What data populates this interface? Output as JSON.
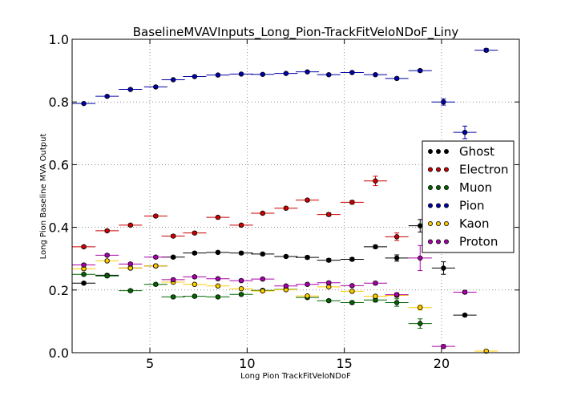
{
  "chart_data": {
    "type": "scatter",
    "title": "BaselineMVAVInputs_Long_Pion-TrackFitVeloNDoF_Liny",
    "xlabel": "Long Pion TrackFitVeloNDoF",
    "ylabel": "Long Pion Baseline MVA Output",
    "xlim": [
      1,
      24
    ],
    "ylim": [
      0.0,
      1.0
    ],
    "x_ticks": [
      5,
      10,
      15,
      20
    ],
    "x_tick_labels": [
      "5",
      "10",
      "15",
      "20"
    ],
    "y_ticks": [
      0.0,
      0.2,
      0.4,
      0.6,
      0.8,
      1.0
    ],
    "y_tick_labels": [
      "0.0",
      "0.2",
      "0.4",
      "0.6",
      "0.8",
      "1.0"
    ],
    "grid": true,
    "legend_position": "right",
    "bin_half_width": 0.6,
    "series": [
      {
        "name": "Ghost",
        "color": "#000000",
        "ecolor": "#000000",
        "x": [
          1.6,
          2.8,
          4.0,
          5.3,
          6.2,
          7.3,
          8.5,
          9.7,
          10.8,
          12.0,
          13.1,
          14.2,
          15.4,
          16.6,
          17.7,
          18.9,
          20.1,
          21.2
        ],
        "y": [
          0.222,
          0.247,
          0.27,
          0.277,
          0.305,
          0.318,
          0.32,
          0.318,
          0.315,
          0.307,
          0.304,
          0.295,
          0.298,
          0.338,
          0.302,
          0.405,
          0.27,
          0.12
        ],
        "err": [
          0.004,
          0.004,
          0.004,
          0.004,
          0.004,
          0.004,
          0.004,
          0.004,
          0.004,
          0.004,
          0.005,
          0.005,
          0.005,
          0.005,
          0.01,
          0.02,
          0.02,
          0.004
        ]
      },
      {
        "name": "Electron",
        "color": "#cc0000",
        "ecolor": "#cc0000",
        "x": [
          1.6,
          2.8,
          4.0,
          5.3,
          6.2,
          7.3,
          8.5,
          9.7,
          10.8,
          12.0,
          13.1,
          14.2,
          15.4,
          16.6,
          17.7
        ],
        "y": [
          0.338,
          0.389,
          0.407,
          0.436,
          0.372,
          0.382,
          0.432,
          0.407,
          0.445,
          0.461,
          0.487,
          0.441,
          0.48,
          0.548,
          0.37
        ],
        "err": [
          0.004,
          0.004,
          0.004,
          0.004,
          0.004,
          0.004,
          0.004,
          0.004,
          0.004,
          0.004,
          0.004,
          0.005,
          0.005,
          0.015,
          0.012
        ]
      },
      {
        "name": "Muon",
        "color": "#006600",
        "ecolor": "#006600",
        "x": [
          1.6,
          2.8,
          4.0,
          5.3,
          6.2,
          7.3,
          8.5,
          9.7,
          10.8,
          12.0,
          13.1,
          14.2,
          15.4,
          16.6,
          17.7,
          18.9
        ],
        "y": [
          0.25,
          0.245,
          0.198,
          0.218,
          0.178,
          0.18,
          0.178,
          0.186,
          0.199,
          0.202,
          0.176,
          0.166,
          0.16,
          0.168,
          0.16,
          0.093
        ],
        "err": [
          0.004,
          0.004,
          0.004,
          0.004,
          0.004,
          0.004,
          0.004,
          0.004,
          0.004,
          0.004,
          0.004,
          0.004,
          0.005,
          0.006,
          0.012,
          0.015
        ]
      },
      {
        "name": "Pion",
        "color": "#0000aa",
        "ecolor": "#0000aa",
        "x": [
          1.6,
          2.8,
          4.0,
          5.3,
          6.2,
          7.3,
          8.5,
          9.7,
          10.8,
          12.0,
          13.1,
          14.2,
          15.4,
          16.6,
          17.7,
          18.9,
          20.1,
          21.2,
          22.3
        ],
        "y": [
          0.795,
          0.818,
          0.84,
          0.848,
          0.871,
          0.881,
          0.886,
          0.889,
          0.888,
          0.891,
          0.896,
          0.887,
          0.894,
          0.887,
          0.875,
          0.9,
          0.8,
          0.703,
          0.965
        ],
        "err": [
          0.003,
          0.003,
          0.003,
          0.003,
          0.003,
          0.003,
          0.003,
          0.003,
          0.003,
          0.003,
          0.003,
          0.003,
          0.003,
          0.003,
          0.004,
          0.004,
          0.01,
          0.02,
          0.005
        ]
      },
      {
        "name": "Kaon",
        "color": "#ffcc00",
        "ecolor": "#ffcc00",
        "x": [
          1.6,
          2.8,
          4.0,
          5.3,
          6.2,
          7.3,
          8.5,
          9.7,
          10.8,
          12.0,
          13.1,
          14.2,
          15.4,
          16.6,
          17.7,
          18.9,
          22.3
        ],
        "y": [
          0.268,
          0.293,
          0.27,
          0.277,
          0.225,
          0.218,
          0.213,
          0.204,
          0.197,
          0.201,
          0.181,
          0.21,
          0.196,
          0.18,
          0.183,
          0.144,
          0.005
        ],
        "err": [
          0.004,
          0.004,
          0.004,
          0.004,
          0.004,
          0.004,
          0.004,
          0.004,
          0.004,
          0.004,
          0.004,
          0.004,
          0.004,
          0.005,
          0.006,
          0.008,
          0.003
        ]
      },
      {
        "name": "Proton",
        "color": "#aa00aa",
        "ecolor": "#aa00aa",
        "x": [
          1.6,
          2.8,
          4.0,
          5.3,
          6.2,
          7.3,
          8.5,
          9.7,
          10.8,
          12.0,
          13.1,
          14.2,
          15.4,
          16.6,
          17.7,
          18.9,
          20.1,
          21.2
        ],
        "y": [
          0.28,
          0.311,
          0.283,
          0.305,
          0.233,
          0.242,
          0.236,
          0.23,
          0.235,
          0.213,
          0.218,
          0.223,
          0.214,
          0.222,
          0.185,
          0.302,
          0.02,
          0.193
        ],
        "err": [
          0.004,
          0.004,
          0.004,
          0.004,
          0.004,
          0.004,
          0.004,
          0.004,
          0.004,
          0.004,
          0.004,
          0.004,
          0.004,
          0.005,
          0.006,
          0.04,
          0.005,
          0.005
        ]
      }
    ]
  }
}
